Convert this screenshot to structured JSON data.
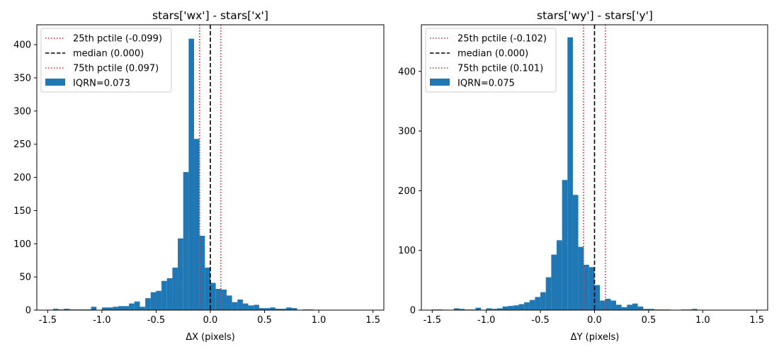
{
  "chart_data": [
    {
      "type": "bar",
      "title": "stars['wx'] - stars['x']",
      "xlabel": "ΔX (pixels)",
      "ylabel": "",
      "xlim": [
        -1.6,
        1.6
      ],
      "ylim": [
        0,
        430
      ],
      "xticks": [
        "-1.5",
        "-1.0",
        "-0.5",
        "0.0",
        "0.5",
        "1.0",
        "1.5"
      ],
      "yticks": [
        "0",
        "50",
        "100",
        "150",
        "200",
        "250",
        "300",
        "350",
        "400"
      ],
      "bin_start": -1.5,
      "bin_width": 0.05,
      "values": [
        0,
        2,
        1,
        2,
        1,
        1,
        1,
        1,
        5,
        0,
        4,
        4,
        5,
        6,
        6,
        10,
        13,
        5,
        18,
        27,
        29,
        44,
        48,
        64,
        108,
        208,
        409,
        258,
        112,
        64,
        41,
        32,
        31,
        22,
        12,
        16,
        10,
        7,
        8,
        3,
        3,
        4,
        2,
        2,
        4,
        3,
        0,
        1,
        1,
        0
      ],
      "color": "#1f77b4",
      "vlines": [
        {
          "label": "25th pctile (-0.099)",
          "x": -0.099,
          "color": "#d62728",
          "style": "dotted"
        },
        {
          "label": "median (0.000)",
          "x": 0.0,
          "color": "#000000",
          "style": "dashed"
        },
        {
          "label": "75th pctile (0.097)",
          "x": 0.097,
          "color": "#d62728",
          "style": "dotted"
        }
      ],
      "hist_label": "IQRN=0.073",
      "legend_position": "upper-left",
      "grid": false
    },
    {
      "type": "bar",
      "title": "stars['wy'] - stars['y']",
      "xlabel": "ΔY (pixels)",
      "ylabel": "",
      "xlim": [
        -1.6,
        1.6
      ],
      "ylim": [
        0,
        478
      ],
      "xticks": [
        "-1.5",
        "-1.0",
        "-0.5",
        "0.0",
        "0.5",
        "1.0",
        "1.5"
      ],
      "yticks": [
        "0",
        "100",
        "200",
        "300",
        "400"
      ],
      "bin_start": -1.5,
      "bin_width": 0.05,
      "values": [
        1,
        1,
        0,
        0,
        3,
        2,
        1,
        1,
        4,
        0,
        3,
        2,
        3,
        6,
        7,
        8,
        10,
        13,
        17,
        22,
        30,
        55,
        93,
        117,
        218,
        457,
        193,
        106,
        76,
        72,
        42,
        16,
        19,
        16,
        9,
        5,
        9,
        11,
        6,
        2,
        2,
        1,
        1,
        1,
        0,
        0,
        1,
        1,
        2,
        0
      ],
      "color": "#1f77b4",
      "vlines": [
        {
          "label": "25th pctile (-0.102)",
          "x": -0.102,
          "color": "#d62728",
          "style": "dotted"
        },
        {
          "label": "median (0.000)",
          "x": 0.0,
          "color": "#000000",
          "style": "dashed"
        },
        {
          "label": "75th pctile (0.101)",
          "x": 0.101,
          "color": "#d62728",
          "style": "dotted"
        }
      ],
      "hist_label": "IQRN=0.075",
      "legend_position": "upper-left",
      "grid": false
    }
  ]
}
